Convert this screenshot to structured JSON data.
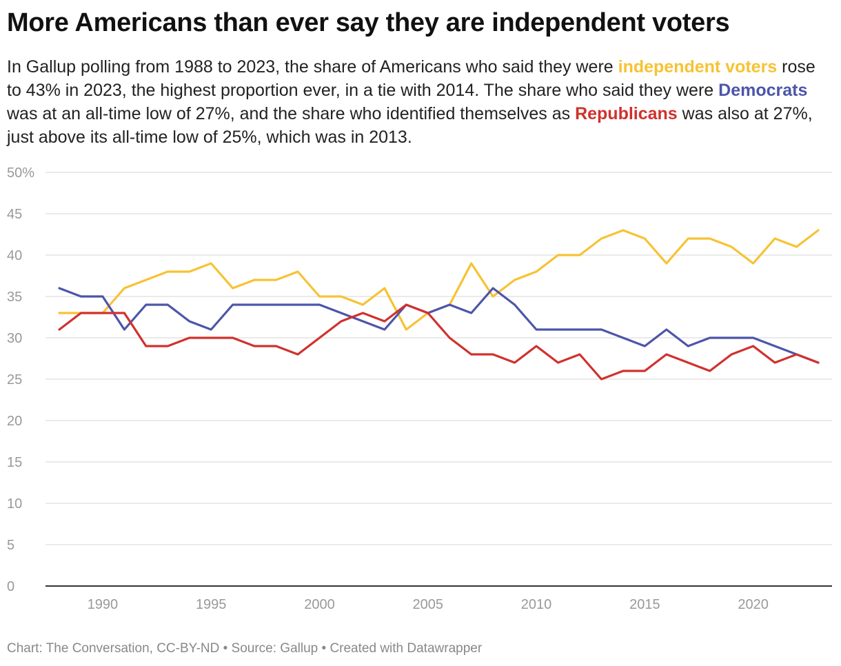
{
  "header": {
    "title": "More Americans than ever say they are independent voters",
    "subtitle_parts": [
      "In Gallup polling from 1988 to 2023, the share of Americans who said they were ",
      "independent voters",
      " rose to 43% in 2023, the highest proportion ever, in a tie with 2014. The share who said they were ",
      "Democrats",
      " was at an all-time low of 27%, and the share who identified themselves as ",
      "Republicans",
      " was also at 27%, just above its all-time low of 25%, which was in 2013."
    ]
  },
  "footer": {
    "credit": "Chart: The Conversation, CC-BY-ND • Source: Gallup • Created with Datawrapper"
  },
  "colors": {
    "independents": "#f7c233",
    "democrats": "#4c55a8",
    "republicans": "#d0312d",
    "grid": "#e3e3e3",
    "axis": "#333333"
  },
  "chart_data": {
    "type": "line",
    "title": "More Americans than ever say they are independent voters",
    "xlabel": "",
    "ylabel": "",
    "ylim": [
      0,
      50
    ],
    "xlim": [
      1988,
      2023
    ],
    "grid": true,
    "y_ticks": [
      {
        "value": 0,
        "label": "0"
      },
      {
        "value": 5,
        "label": "5"
      },
      {
        "value": 10,
        "label": "10"
      },
      {
        "value": 15,
        "label": "15"
      },
      {
        "value": 20,
        "label": "20"
      },
      {
        "value": 25,
        "label": "25"
      },
      {
        "value": 30,
        "label": "30"
      },
      {
        "value": 35,
        "label": "35"
      },
      {
        "value": 40,
        "label": "40"
      },
      {
        "value": 45,
        "label": "45"
      },
      {
        "value": 50,
        "label": "50%"
      }
    ],
    "x_ticks": [
      {
        "value": 1990,
        "label": "1990"
      },
      {
        "value": 1995,
        "label": "1995"
      },
      {
        "value": 2000,
        "label": "2000"
      },
      {
        "value": 2005,
        "label": "2005"
      },
      {
        "value": 2010,
        "label": "2010"
      },
      {
        "value": 2015,
        "label": "2015"
      },
      {
        "value": 2020,
        "label": "2020"
      }
    ],
    "x": [
      1988,
      1989,
      1990,
      1991,
      1992,
      1993,
      1994,
      1995,
      1996,
      1997,
      1998,
      1999,
      2000,
      2001,
      2002,
      2003,
      2004,
      2005,
      2006,
      2007,
      2008,
      2009,
      2010,
      2011,
      2012,
      2013,
      2014,
      2015,
      2016,
      2017,
      2018,
      2019,
      2020,
      2021,
      2022,
      2023
    ],
    "series": [
      {
        "key": "independents",
        "name": "independent voters",
        "color": "#f7c233",
        "values": [
          33,
          33,
          33,
          36,
          37,
          38,
          38,
          39,
          36,
          37,
          37,
          38,
          35,
          35,
          34,
          36,
          31,
          33,
          34,
          39,
          35,
          37,
          38,
          40,
          40,
          42,
          43,
          42,
          39,
          42,
          42,
          41,
          39,
          42,
          41,
          43
        ]
      },
      {
        "key": "democrats",
        "name": "Democrats",
        "color": "#4c55a8",
        "values": [
          36,
          35,
          35,
          31,
          34,
          34,
          32,
          31,
          34,
          34,
          34,
          34,
          34,
          33,
          32,
          31,
          34,
          33,
          34,
          33,
          36,
          34,
          31,
          31,
          31,
          31,
          30,
          29,
          31,
          29,
          30,
          30,
          30,
          29,
          28,
          27
        ]
      },
      {
        "key": "republicans",
        "name": "Republicans",
        "color": "#d0312d",
        "values": [
          31,
          33,
          33,
          33,
          29,
          29,
          30,
          30,
          30,
          29,
          29,
          28,
          30,
          32,
          33,
          32,
          34,
          33,
          30,
          28,
          28,
          27,
          29,
          27,
          28,
          25,
          26,
          26,
          28,
          27,
          26,
          28,
          29,
          27,
          28,
          27
        ]
      }
    ]
  }
}
